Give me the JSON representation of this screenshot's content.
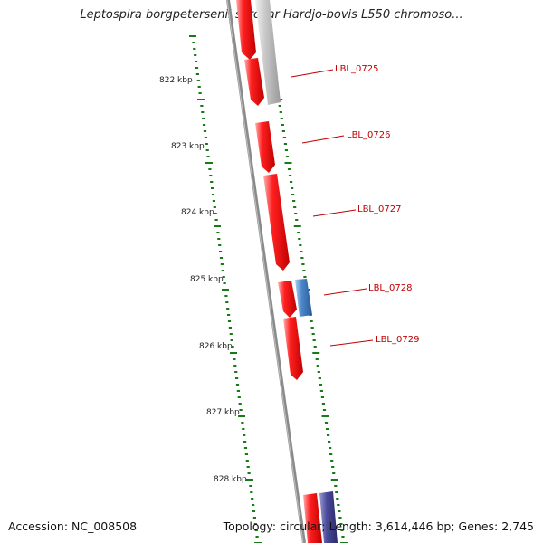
{
  "title": "Leptospira borgpetersenii serovar Hardjo-bovis L550 chromoso...",
  "footer": {
    "accession": "Accession: NC_008508",
    "summary": "Topology: circular; Length: 3,614,446 bp; Genes: 2,745"
  },
  "axis": {
    "unit": "kbp",
    "ticks": [
      "822 kbp",
      "823 kbp",
      "824 kbp",
      "825 kbp",
      "826 kbp",
      "827 kbp",
      "828 kbp"
    ]
  },
  "genes": [
    {
      "name": "",
      "color": "#ff0000",
      "strand": "reverse"
    },
    {
      "name": "LBL_0725",
      "color": "#ff0000",
      "strand": "reverse"
    },
    {
      "name": "LBL_0726",
      "color": "#ff0000",
      "strand": "reverse"
    },
    {
      "name": "LBL_0727",
      "color": "#ff0000",
      "strand": "reverse"
    },
    {
      "name": "LBL_0728",
      "color": "#ff0000",
      "strand": "reverse"
    },
    {
      "name": "LBL_0729",
      "color": "#ff0000",
      "strand": "reverse"
    },
    {
      "name": "",
      "color": "#ff0000",
      "strand": "reverse"
    }
  ],
  "features": [
    {
      "type": "gray-block",
      "color": "#b8b8b8"
    },
    {
      "type": "blue-block",
      "color": "#4a86c8"
    },
    {
      "type": "navy-block",
      "color": "#4a4a9a"
    }
  ],
  "colors": {
    "gene_label": "#c00000",
    "tick": "#1a7a1a",
    "backbone": "#808080"
  }
}
